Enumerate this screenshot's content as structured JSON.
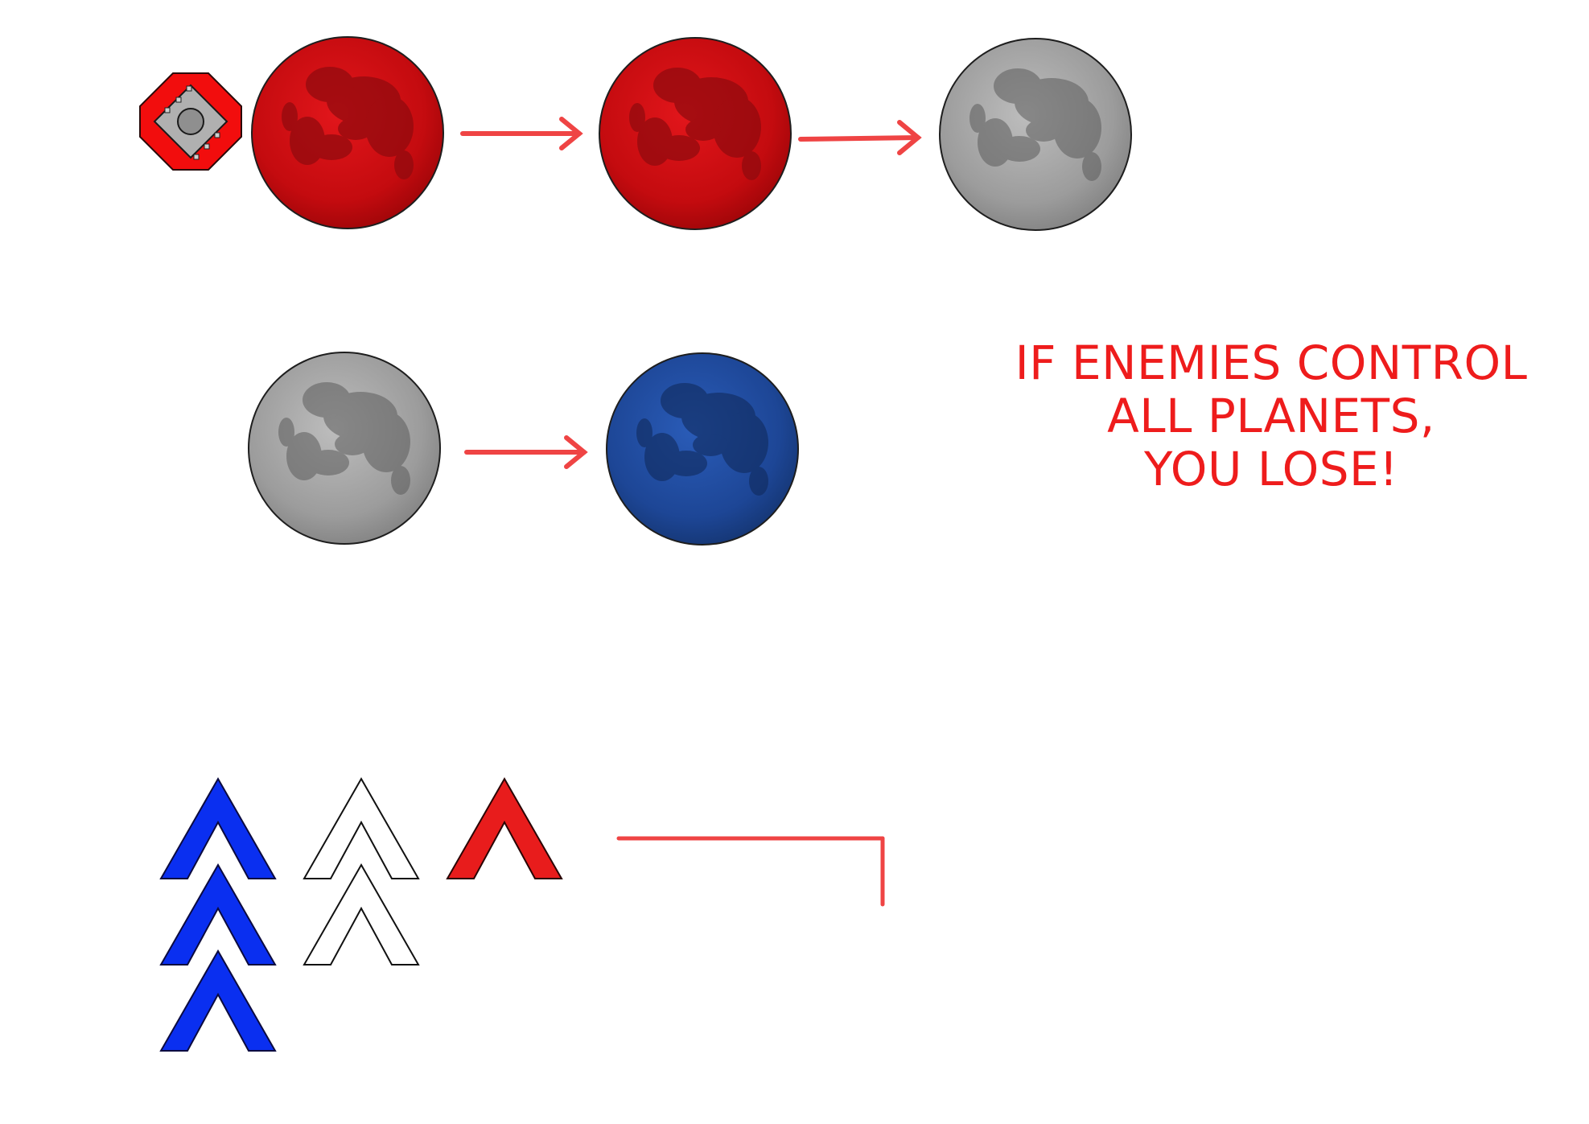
{
  "message": {
    "line1": "IF ENEMIES CONTROL",
    "line2": "ALL PLANETS,",
    "line3": "YOU LOSE!"
  },
  "colors": {
    "enemy": "#cc0a0a",
    "neutral": "#a3a3a3",
    "player": "#1f4fa3",
    "arrow": "#ef4444",
    "text": "#ee1c1c",
    "chevron_player": "#0a2ff0",
    "chevron_enemy": "#e81c1c"
  },
  "scene": {
    "row1": [
      "enemy-base-icon",
      "enemy-planet",
      "arrow",
      "enemy-planet",
      "arrow",
      "neutral-planet"
    ],
    "row2": [
      "neutral-planet",
      "arrow",
      "player-planet"
    ],
    "units": {
      "player_chevrons": 3,
      "neutral_chevrons": 2,
      "enemy_chevrons": 1
    }
  }
}
